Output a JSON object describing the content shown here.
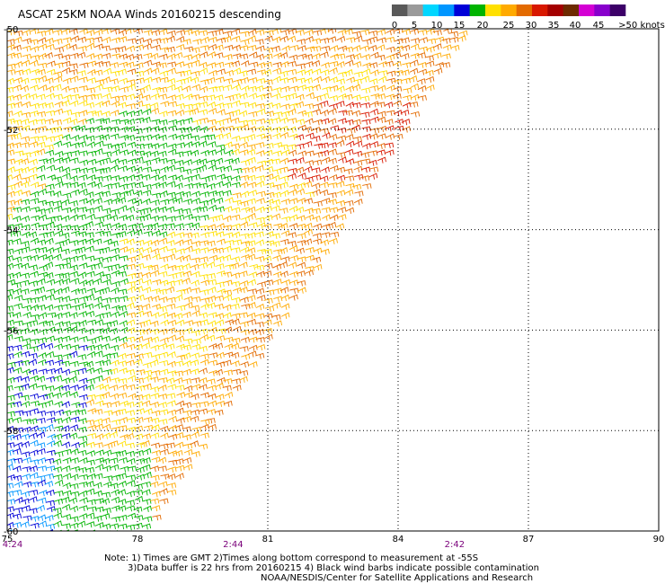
{
  "title": "ASCAT 25KM NOAA Winds 20160215 descending",
  "legend": {
    "labels": [
      "0",
      "5",
      "10",
      "15",
      "20",
      "25",
      "30",
      "35",
      "40",
      "45",
      ">50 knots"
    ],
    "colors": [
      "#595959",
      "#9a9a9a",
      "#00d6ff",
      "#0096ff",
      "#0000d8",
      "#00b400",
      "#ffe000",
      "#ffaa00",
      "#e36a00",
      "#d81800",
      "#a40000",
      "#6e2a00",
      "#d400d4",
      "#8800cc",
      "#3c0068"
    ]
  },
  "map": {
    "lon_labels": [
      "75",
      "78",
      "81",
      "84",
      "87",
      "90"
    ],
    "lat_labels": [
      "-50",
      "-52",
      "-54",
      "-56",
      "-58",
      "-60"
    ],
    "time_labels": [
      {
        "text": "4:24",
        "lon": 75.0
      },
      {
        "text": "2:44",
        "lon": 80.2
      },
      {
        "text": "2:42",
        "lon": 85.3
      }
    ],
    "time_color": "#7a007a"
  },
  "notes": [
    "Note: 1) Times are GMT 2)Times along bottom correspond to measurement at -55S",
    "3)Data buffer is 22 hrs from 20160215 4) Black wind barbs indicate possible contamination",
    "NOAA/NESDIS/Center for Satellite Applications and Research"
  ]
}
